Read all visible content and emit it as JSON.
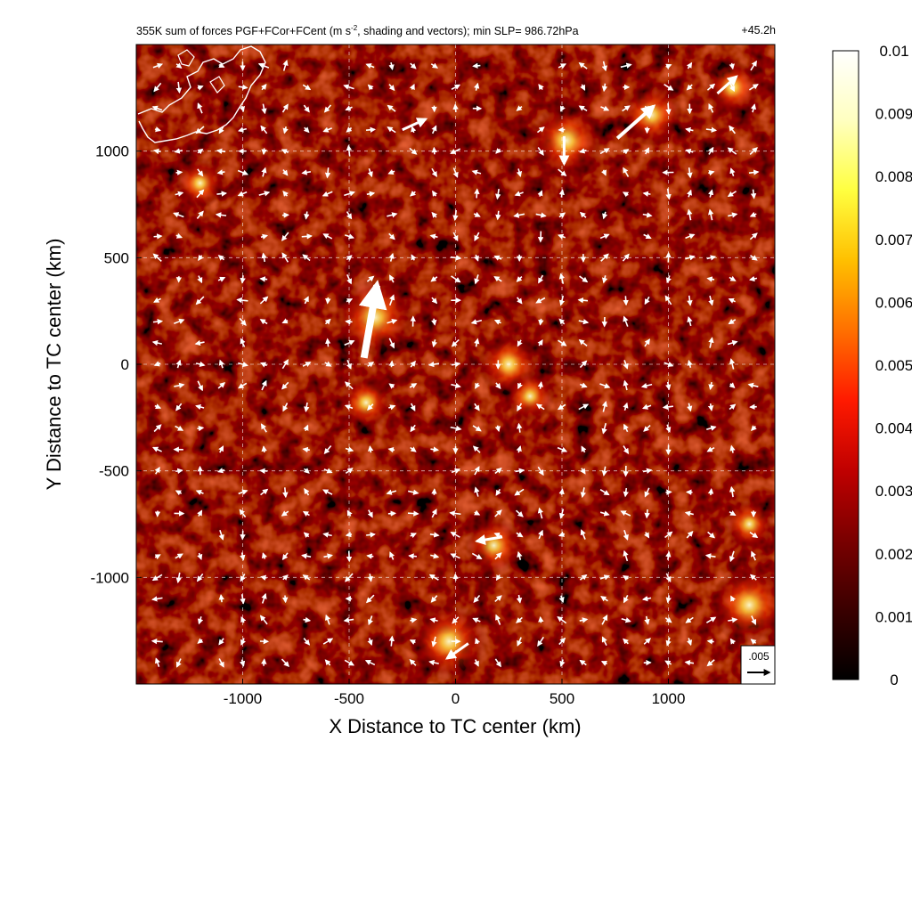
{
  "chart_data": {
    "type": "heatmap",
    "title": "355K sum of forces PGF+FCor+FCent (m s",
    "title_superscript": "-2",
    "title_suffix": ", shading and vectors); min SLP= 986.72hPa",
    "time_label": "+45.2h",
    "xlabel": "X Distance to TC center (km)",
    "ylabel": "Y Distance to TC center (km)",
    "xlim": [
      -1500,
      1500
    ],
    "ylim": [
      -1500,
      1500
    ],
    "x_ticks": [
      -1000,
      -500,
      0,
      500,
      1000
    ],
    "y_ticks": [
      -1000,
      -500,
      0,
      500,
      1000
    ],
    "grid": true,
    "colorbar": {
      "range": [
        0,
        0.01
      ],
      "ticks": [
        "0.01",
        "0.009",
        "0.008",
        "0.007",
        "0.006",
        "0.005",
        "0.004",
        "0.003",
        "0.002",
        "0.001",
        "0"
      ],
      "colormap": [
        "#000000",
        "#3a0000",
        "#7a0000",
        "#c00000",
        "#ff1a00",
        "#ff7000",
        "#ffc000",
        "#ffff40",
        "#ffffc0",
        "#ffffff"
      ]
    },
    "reference_vector": {
      "label": ".005",
      "magnitude": 0.005
    },
    "vectors_summary": "force vectors on ~120 km grid; strongest near (-380, 170) pointing north-northeast",
    "hotspots": [
      {
        "x": -380,
        "y": 220,
        "intensity": 0.0065
      },
      {
        "x": -420,
        "y": -180,
        "intensity": 0.0035
      },
      {
        "x": 520,
        "y": 1050,
        "intensity": 0.006
      },
      {
        "x": 920,
        "y": 1170,
        "intensity": 0.0045
      },
      {
        "x": 1300,
        "y": 1300,
        "intensity": 0.0035
      },
      {
        "x": -30,
        "y": -1300,
        "intensity": 0.0065
      },
      {
        "x": 180,
        "y": -850,
        "intensity": 0.004
      },
      {
        "x": 1380,
        "y": -1130,
        "intensity": 0.0065
      },
      {
        "x": 250,
        "y": 0,
        "intensity": 0.0045
      },
      {
        "x": 350,
        "y": -150,
        "intensity": 0.003
      },
      {
        "x": -1200,
        "y": 850,
        "intensity": 0.003
      },
      {
        "x": 1380,
        "y": -750,
        "intensity": 0.003
      }
    ]
  }
}
